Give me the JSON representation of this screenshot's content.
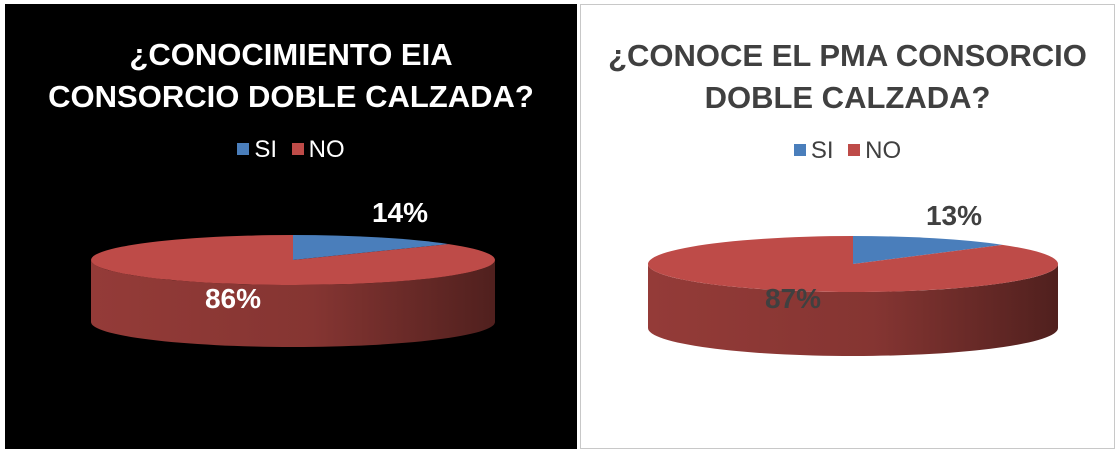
{
  "chart_data": [
    {
      "type": "pie",
      "title_lines": [
        "¿CONOCIMIENTO EIA",
        "CONSORCIO DOBLE CALZADA?"
      ],
      "categories": [
        "SI",
        "NO"
      ],
      "values": [
        14,
        86
      ],
      "labels": [
        "14%",
        "86%"
      ],
      "colors": [
        "#4a7ebb",
        "#be4b48"
      ],
      "background": "#000000",
      "text_color": "#ffffff",
      "pct_color": "#ffffff",
      "legend_position": "top",
      "style": "3d"
    },
    {
      "type": "pie",
      "title_lines": [
        "¿CONOCE EL PMA CONSORCIO",
        "DOBLE CALZADA?"
      ],
      "categories": [
        "SI",
        "NO"
      ],
      "values": [
        13,
        87
      ],
      "labels": [
        "13%",
        "87%"
      ],
      "colors": [
        "#4a7ebb",
        "#be4b48"
      ],
      "background": "#ffffff",
      "text_color": "#404040",
      "pct_color": "#404040",
      "legend_position": "top",
      "style": "3d"
    }
  ]
}
